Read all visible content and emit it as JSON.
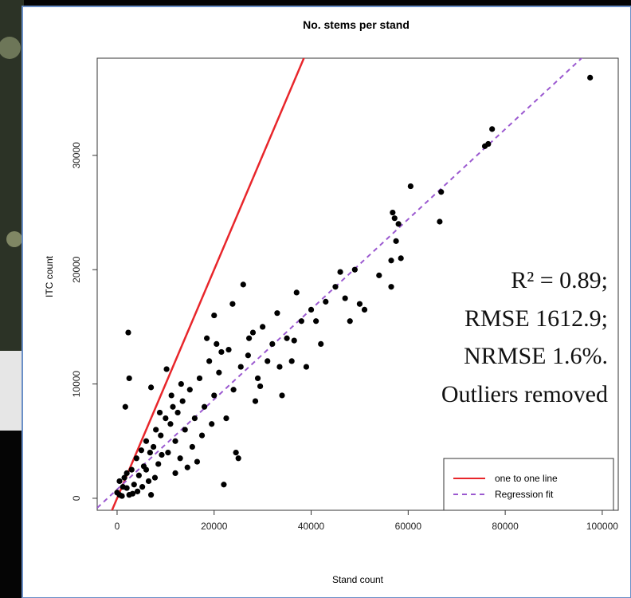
{
  "chart_data": {
    "type": "scatter",
    "title": "No. stems per stand",
    "x_label": "Stand count",
    "y_label": "ITC count",
    "xlim": [
      -4100,
      103300
    ],
    "ylim": [
      -1050,
      38500
    ],
    "xticks": [
      0,
      20000,
      40000,
      60000,
      80000,
      100000
    ],
    "yticks": [
      0,
      10000,
      20000,
      30000
    ],
    "grid": false,
    "legend": "bottom-right",
    "point_color": "#000000",
    "x": [
      0,
      500,
      1000,
      1500,
      2000,
      2500,
      3000,
      3500,
      4000,
      4500,
      5000,
      5500,
      6000,
      6500,
      7000,
      7500,
      8000,
      8500,
      9000,
      10000,
      10500,
      11000,
      11500,
      12000,
      12500,
      13000,
      13500,
      14000,
      15000,
      15500,
      16000,
      17000,
      17500,
      18000,
      19000,
      19500,
      20000,
      20500,
      21000,
      22000,
      22500,
      23000,
      24000,
      24500,
      25000,
      25500,
      26000,
      27000,
      28000,
      28500,
      29000,
      30000,
      31000,
      32000,
      33000,
      34000,
      35000,
      36000,
      37000,
      38000,
      39000,
      40000,
      42000,
      45000,
      46000,
      47000,
      48000,
      49000,
      50000,
      51000,
      54000,
      56500,
      56500,
      56800,
      57200,
      57500,
      58000,
      58500,
      60500,
      66500,
      66800,
      75800,
      76500,
      77300,
      97500,
      2300,
      2500,
      1700,
      7000,
      10200,
      500,
      1200,
      2000,
      3200,
      4200,
      5200,
      6000,
      7800,
      9200,
      12000,
      14500,
      16500,
      6800,
      8800,
      11200,
      13200,
      18500,
      20000,
      21500,
      23800,
      27200,
      29500,
      41000,
      43000,
      36500,
      33500
    ],
    "y": [
      500,
      1500,
      200,
      1800,
      900,
      300,
      2500,
      1200,
      3500,
      2000,
      4200,
      2800,
      5000,
      1500,
      300,
      4500,
      6000,
      3000,
      5500,
      7000,
      4000,
      6500,
      8000,
      5000,
      7500,
      3500,
      8500,
      6000,
      9500,
      4500,
      7000,
      10500,
      5500,
      8000,
      12000,
      6500,
      9000,
      13500,
      11000,
      1200,
      7000,
      13000,
      9500,
      4000,
      3500,
      11500,
      18700,
      12500,
      14500,
      8500,
      10500,
      15000,
      12000,
      13500,
      16200,
      9000,
      14000,
      12000,
      18000,
      15500,
      11500,
      16500,
      13500,
      18500,
      19800,
      17500,
      15500,
      20000,
      17000,
      16500,
      19500,
      18500,
      20800,
      25000,
      24500,
      22500,
      24000,
      21000,
      27300,
      24200,
      26800,
      30800,
      31000,
      32300,
      36800,
      14500,
      10500,
      8000,
      9700,
      11300,
      300,
      1000,
      2200,
      400,
      600,
      1000,
      2500,
      1800,
      3800,
      2200,
      2700,
      3200,
      4000,
      7500,
      9000,
      10000,
      14000,
      16000,
      12800,
      17000,
      14000,
      9800,
      15500,
      17200,
      13800,
      11500
    ],
    "lines": [
      {
        "name": "one to one line",
        "color": "#e8262b",
        "slope": 1,
        "intercept": 0,
        "dashed": false
      },
      {
        "name": "Regression fit",
        "color": "#9b59d0",
        "slope": 0.394,
        "intercept": 777,
        "dashed": true
      }
    ],
    "annotations": [
      "R² = 0.89;",
      "RMSE 1612.9;",
      "NRMSE 1.6%.",
      "Outliers removed"
    ]
  }
}
